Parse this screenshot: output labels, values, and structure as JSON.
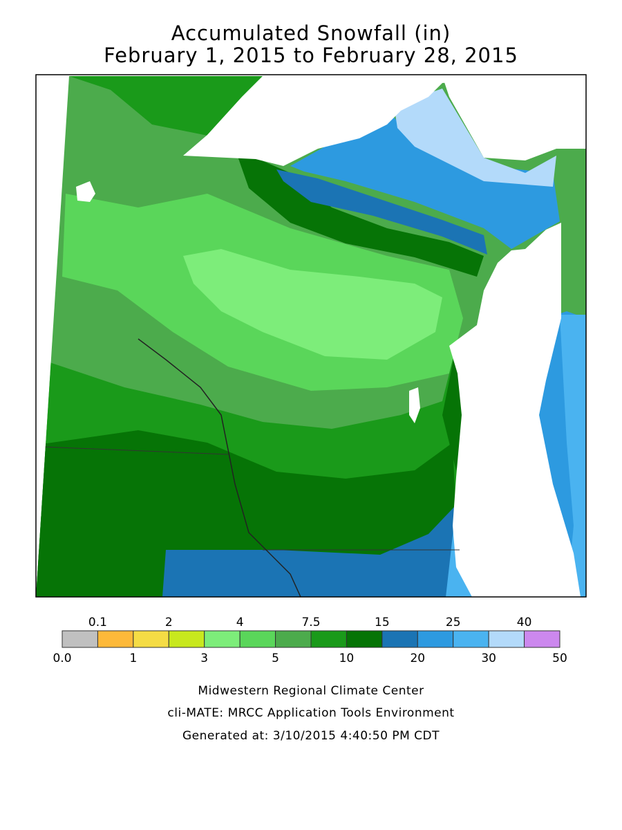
{
  "title": [
    "Accumulated Snowfall (in)",
    "February 1, 2015 to February 28, 2015"
  ],
  "legend": {
    "breaks": [
      {
        "value": 0,
        "label": "0.0"
      },
      0.1,
      1,
      2,
      3,
      4,
      5,
      7.5,
      10,
      15,
      20,
      25,
      30,
      40,
      50
    ],
    "colors": [
      "#c0c0c0",
      "#fdb93a",
      "#f5dc45",
      "#c8e81e",
      "#7ded7a",
      "#5ad65a",
      "#4cab4c",
      "#1a9a1a",
      "#067406",
      "#1b74b4",
      "#2d9ae0",
      "#4ab3f0",
      "#b3dafa",
      "#cc88ee"
    ]
  },
  "footer": [
    "Midwestern Regional Climate Center",
    "cli-MATE: MRCC Application Tools Environment",
    "Generated at: 3/10/2015 4:40:50 PM CDT"
  ]
}
